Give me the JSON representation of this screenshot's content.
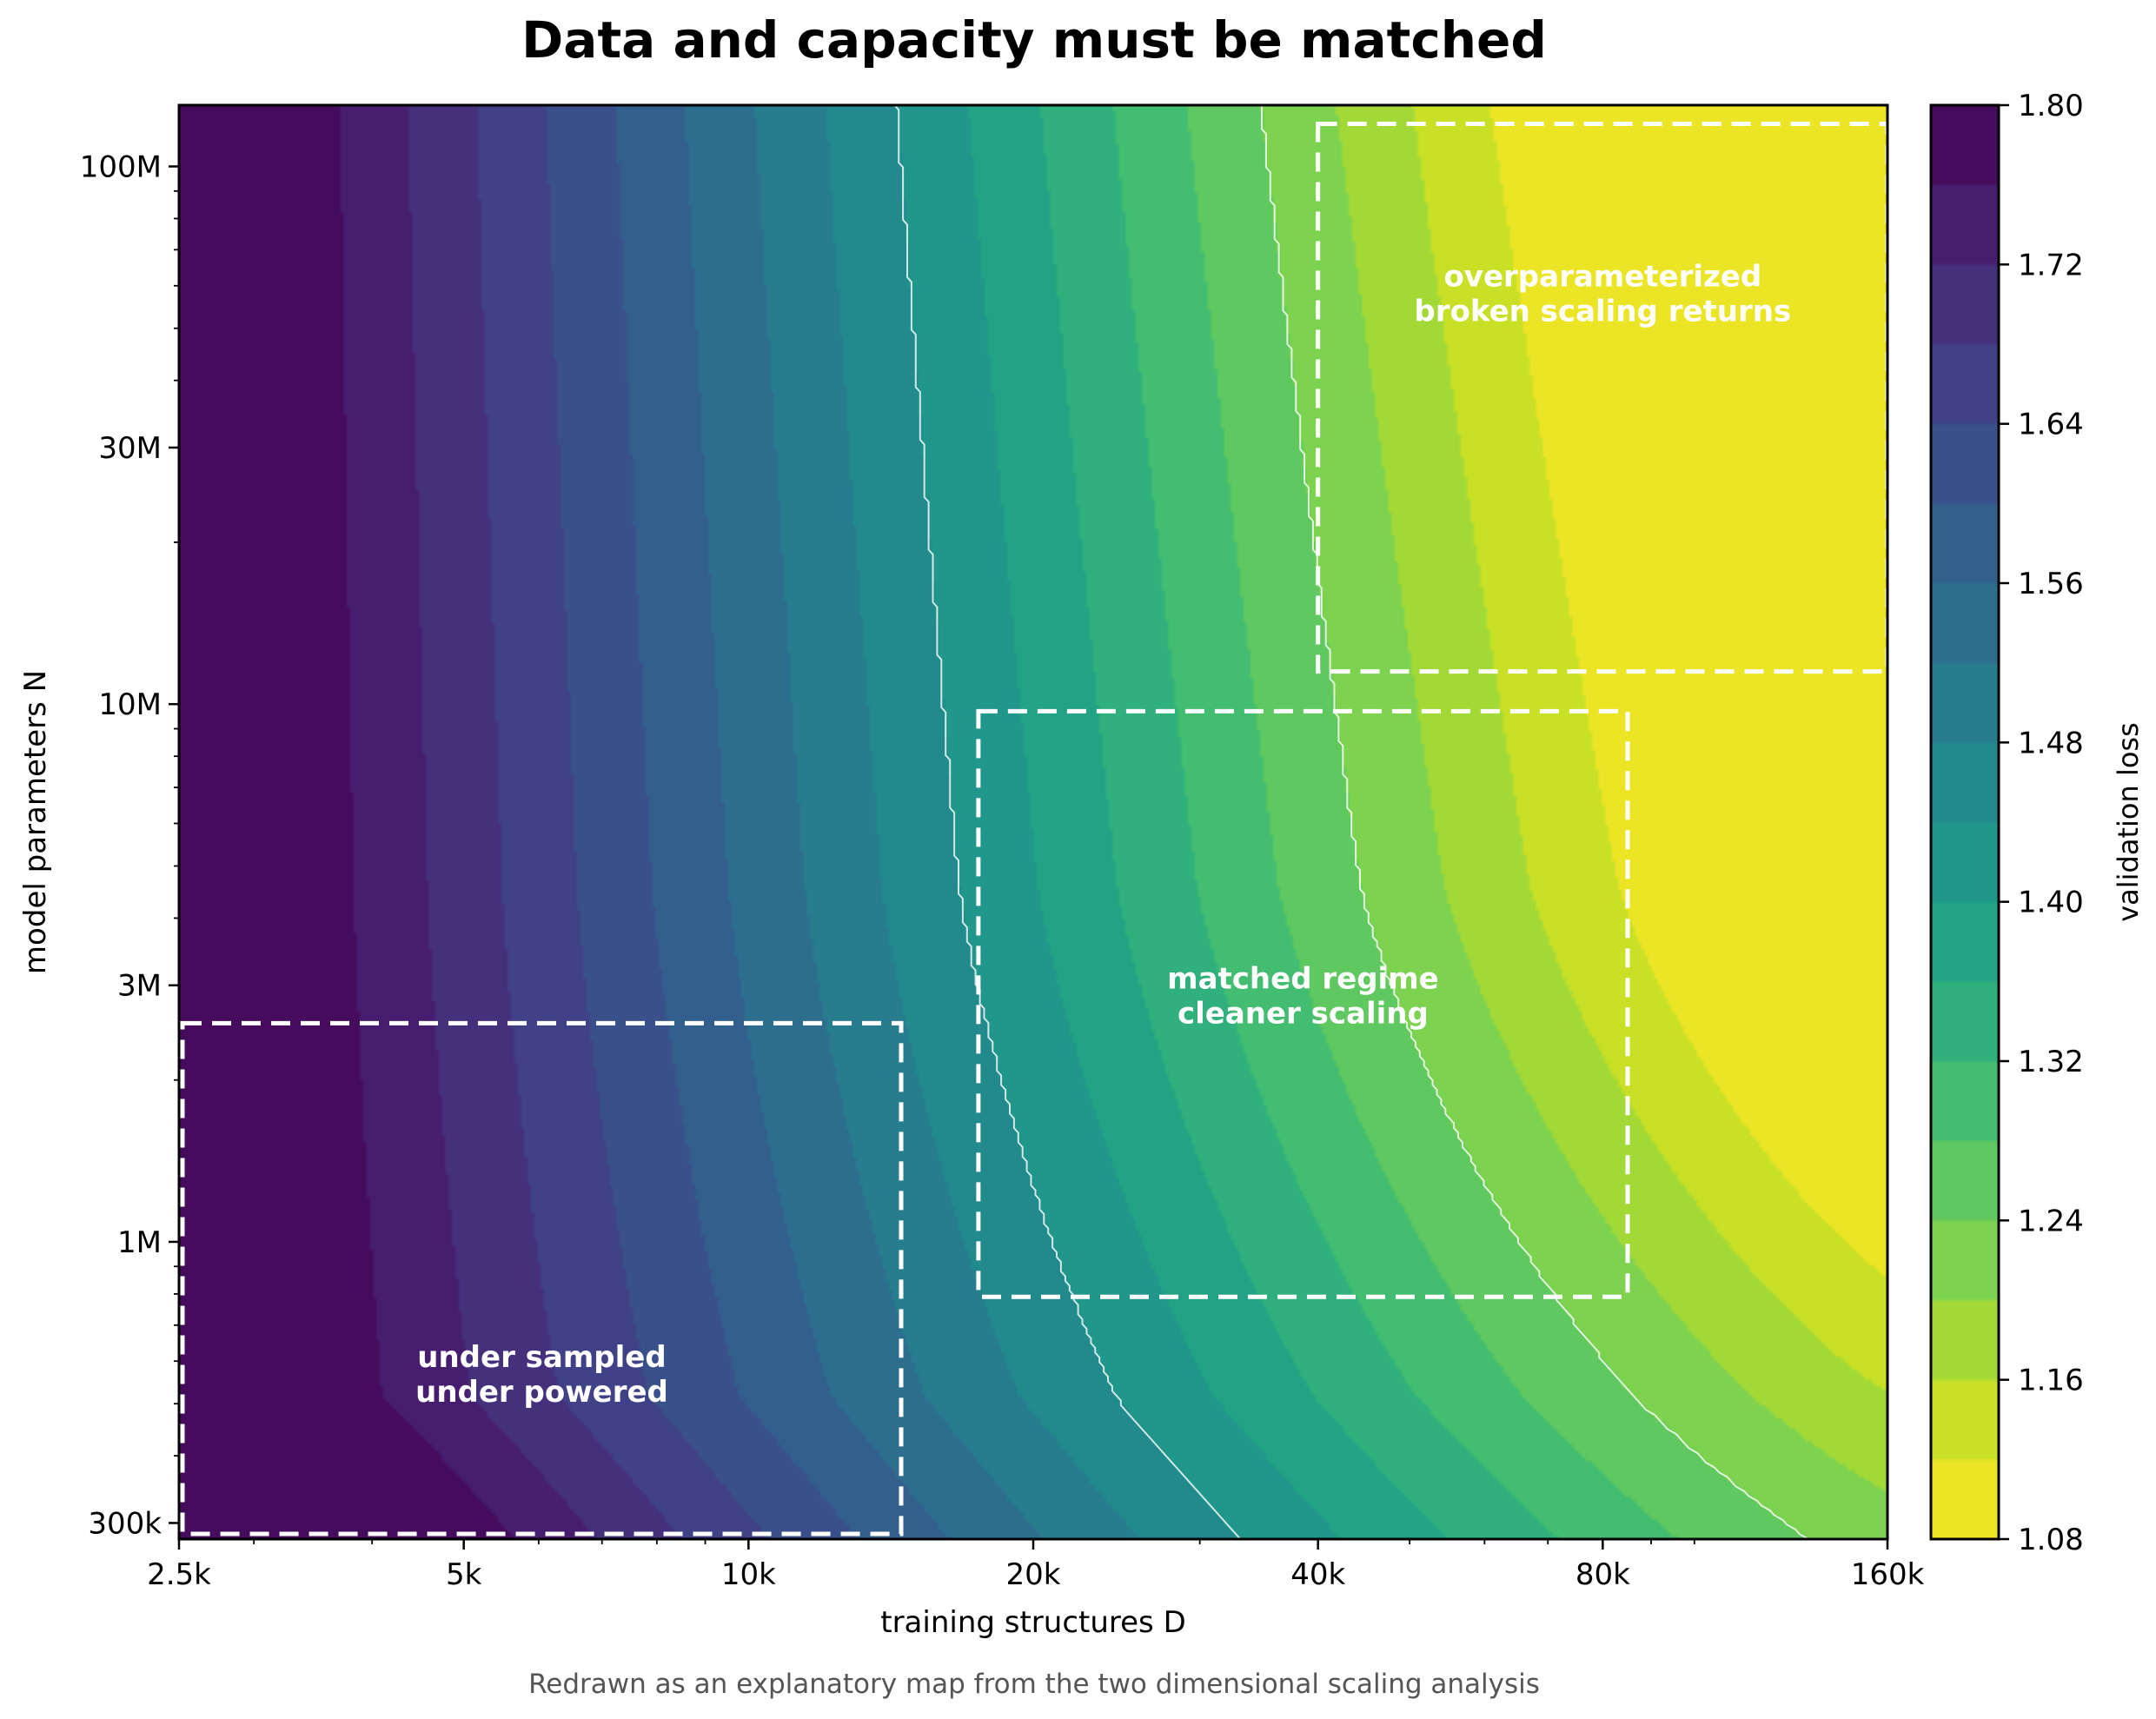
{
  "chart_data": {
    "type": "heatmap",
    "title": "Data and capacity must be matched",
    "xlabel": "training structures D",
    "ylabel": "model parameters N",
    "x_scale": "log",
    "y_scale": "log",
    "xlim": [
      2500,
      160000
    ],
    "ylim": [
      280000,
      130000000
    ],
    "x_ticks": [
      {
        "value": 2500,
        "label": "2.5k"
      },
      {
        "value": 5000,
        "label": "5k"
      },
      {
        "value": 10000,
        "label": "10k"
      },
      {
        "value": 20000,
        "label": "20k"
      },
      {
        "value": 40000,
        "label": "40k"
      },
      {
        "value": 80000,
        "label": "80k"
      },
      {
        "value": 160000,
        "label": "160k"
      }
    ],
    "y_ticks": [
      {
        "value": 300000,
        "label": "300k"
      },
      {
        "value": 1000000,
        "label": "1M"
      },
      {
        "value": 3000000,
        "label": "3M"
      },
      {
        "value": 10000000,
        "label": "10M"
      },
      {
        "value": 30000000,
        "label": "30M"
      },
      {
        "value": 100000000,
        "label": "100M"
      }
    ],
    "colorbar": {
      "label": "validation loss",
      "colormap": "viridis_r",
      "range": [
        1.08,
        1.8
      ],
      "level_step": 0.04,
      "ticks": [
        "1.08",
        "1.16",
        "1.24",
        "1.32",
        "1.40",
        "1.48",
        "1.56",
        "1.64",
        "1.72",
        "1.80"
      ]
    },
    "regions": [
      {
        "name": "under_sampled",
        "lines": [
          "under sampled",
          "under powered"
        ],
        "x_range": [
          2500,
          14500
        ],
        "y_range": [
          280000,
          2550000
        ]
      },
      {
        "name": "matched",
        "lines": [
          "matched regime",
          "cleaner scaling"
        ],
        "x_range": [
          17500,
          85000
        ],
        "y_range": [
          790000,
          9700000
        ]
      },
      {
        "name": "overparameterized",
        "lines": [
          "overparameterized",
          "broken scaling returns"
        ],
        "x_range": [
          40000,
          160000
        ],
        "y_range": [
          11500000,
          120000000
        ]
      }
    ],
    "highlight_contours": [
      1.44,
      1.24
    ]
  },
  "footer_note": "Redrawn as an explanatory map from the two dimensional scaling analysis"
}
